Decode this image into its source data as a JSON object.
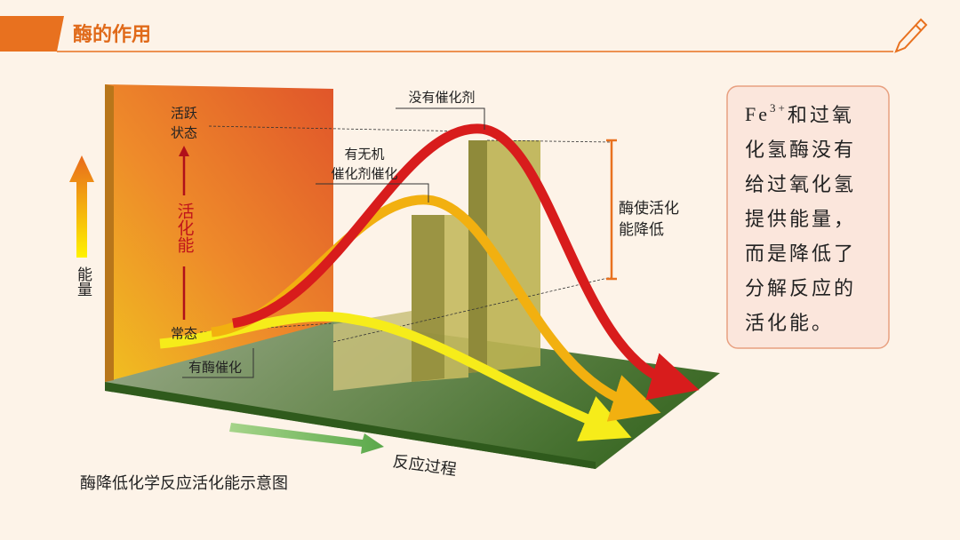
{
  "header": {
    "title": "酶的作用"
  },
  "diagram": {
    "curve_labels": {
      "none": "没有催化剂",
      "inorganic": [
        "有无机",
        "催化剂催化"
      ],
      "enzyme": "有酶催化"
    },
    "active_state": [
      "活跃",
      "状态"
    ],
    "normal_state": "常态",
    "activation_energy": "活化能",
    "y_axis": "能量",
    "x_axis": "反应过程",
    "bracket_label": [
      "酶使活化",
      "能降低"
    ],
    "caption": "酶降低化学反应活化能示意图"
  },
  "note": {
    "first_line": {
      "text": "Fe",
      "sup": "3+",
      "rest": "和过氧"
    },
    "lines": [
      "化氢酶没有",
      "给过氧化氢",
      "提供能量，",
      "而是降低了",
      "分解反应的",
      "活化能。"
    ]
  }
}
